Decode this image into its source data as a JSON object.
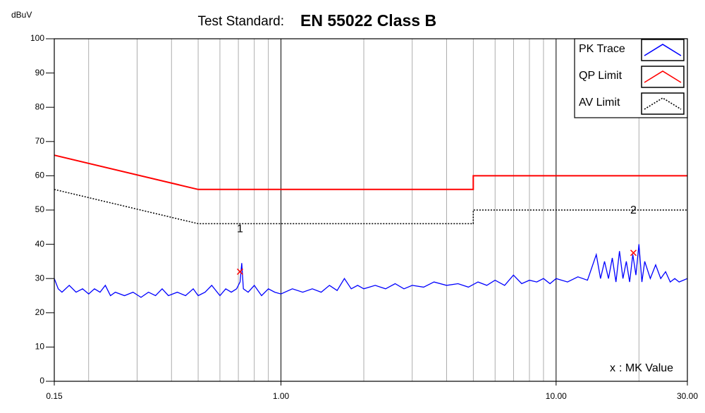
{
  "chart_data": {
    "type": "line",
    "title_label": "Test Standard:",
    "title": "EN 55022 Class B",
    "y_label": "dBuV",
    "xscale": "log",
    "xlim": [
      0.15,
      30
    ],
    "xticks": [
      0.15,
      {
        "value": 1,
        "label": "1.00"
      },
      {
        "value": 10,
        "label": "10.00"
      },
      {
        "value": 30,
        "label": "30.00"
      }
    ],
    "ylim": [
      0,
      100
    ],
    "yticks": [
      0,
      10,
      20,
      30,
      40,
      50,
      60,
      70,
      80,
      90,
      100
    ],
    "grid": true,
    "legend": "top-right",
    "series": [
      {
        "name": "PK Trace",
        "color": "#0000ff",
        "style": "solid",
        "x": [
          0.15,
          0.155,
          0.16,
          0.17,
          0.18,
          0.19,
          0.2,
          0.21,
          0.22,
          0.23,
          0.24,
          0.25,
          0.27,
          0.29,
          0.31,
          0.33,
          0.35,
          0.37,
          0.39,
          0.42,
          0.45,
          0.48,
          0.5,
          0.53,
          0.56,
          0.6,
          0.63,
          0.66,
          0.69,
          0.71,
          0.72,
          0.73,
          0.76,
          0.8,
          0.85,
          0.9,
          0.95,
          1.0,
          1.1,
          1.2,
          1.3,
          1.4,
          1.5,
          1.6,
          1.7,
          1.8,
          1.9,
          2.0,
          2.2,
          2.4,
          2.6,
          2.8,
          3.0,
          3.3,
          3.6,
          4.0,
          4.4,
          4.8,
          5.2,
          5.6,
          6.0,
          6.5,
          7.0,
          7.5,
          8.0,
          8.5,
          9.0,
          9.5,
          10,
          11,
          12,
          13,
          14,
          14.5,
          15,
          15.5,
          16,
          16.5,
          17,
          17.5,
          18,
          18.5,
          19,
          19.5,
          20,
          20.5,
          21,
          22,
          23,
          24,
          25,
          26,
          27,
          28,
          29,
          30
        ],
        "values": [
          30,
          27,
          26,
          28,
          26,
          27,
          25.5,
          27,
          26,
          28,
          25,
          26,
          25,
          26,
          24.5,
          26,
          25,
          27,
          25,
          26,
          25,
          27,
          25,
          26,
          28,
          25,
          27,
          26,
          27,
          29,
          34.5,
          27,
          26,
          28,
          25,
          27,
          26,
          25.5,
          27,
          26,
          27,
          26,
          28,
          26.5,
          30,
          27,
          28,
          27,
          28,
          27,
          28.5,
          27,
          28,
          27.5,
          29,
          28,
          28.5,
          27.5,
          29,
          28,
          29.5,
          28,
          31,
          28.5,
          29.5,
          29,
          30,
          28.5,
          30,
          29,
          30.5,
          29.5,
          37,
          30,
          35,
          30,
          36,
          29,
          38,
          30,
          35,
          29,
          37,
          31,
          40,
          29,
          35,
          30,
          34,
          30,
          32,
          29,
          30,
          29,
          29.5,
          30
        ]
      },
      {
        "name": "QP Limit",
        "color": "#ff0000",
        "style": "solid",
        "x": [
          0.15,
          0.5,
          5,
          5,
          30
        ],
        "values": [
          66,
          56,
          56,
          60,
          60
        ]
      },
      {
        "name": "AV Limit",
        "color": "#000000",
        "style": "dotted",
        "x": [
          0.15,
          0.5,
          5,
          5,
          30
        ],
        "values": [
          56,
          46,
          46,
          50,
          50
        ]
      }
    ],
    "markers": [
      {
        "label": "1",
        "x": 0.71,
        "value": 32
      },
      {
        "label": "2",
        "x": 19.1,
        "value": 37.5
      }
    ],
    "marker_color": "#ff0000",
    "marker_legend": {
      "symbol": "x",
      "label": ": MK Value"
    }
  }
}
